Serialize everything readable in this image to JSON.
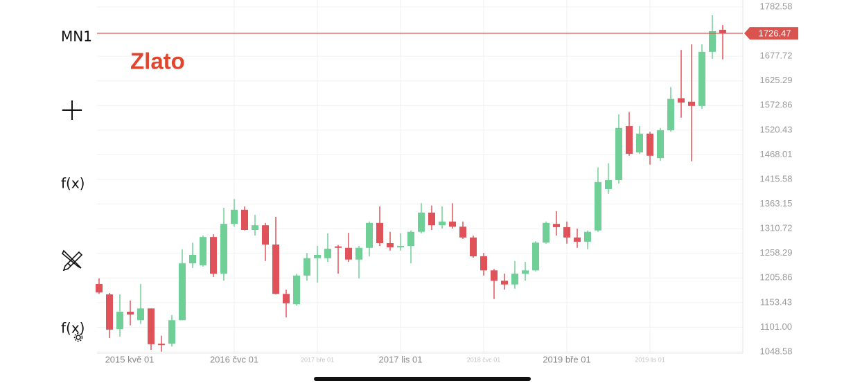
{
  "toolbar": {
    "timeframe": "MN1",
    "indicators": "f(x)",
    "custom": "f(x)"
  },
  "chart_data": {
    "type": "candlestick",
    "title": "Zlato",
    "title_color": "#e0452e",
    "x_start_label": "2015 kvě 01",
    "categories": [
      null,
      null,
      null,
      null,
      null,
      null,
      null,
      null,
      null,
      null,
      null,
      null,
      null,
      "2016 čvc 01",
      null,
      null,
      null,
      null,
      null,
      null,
      null,
      "2017 bře 01",
      null,
      null,
      null,
      null,
      null,
      null,
      null,
      "2017 lis 01",
      null,
      null,
      null,
      null,
      null,
      null,
      null,
      "2018 čvc 01",
      null,
      null,
      null,
      null,
      null,
      null,
      null,
      "2019 bře 01",
      null,
      null,
      null,
      null,
      null,
      null,
      null,
      "2019 lis 01",
      null,
      null,
      null,
      null,
      null,
      null,
      null
    ],
    "open": [
      1193,
      1171,
      1097,
      1134,
      1116,
      1141,
      1066,
      1066,
      1116,
      1237,
      1233,
      1293,
      1215,
      1321,
      1351,
      1308,
      1318,
      1277,
      1172,
      1150,
      1211,
      1248,
      1248,
      1273,
      1270,
      1245,
      1270,
      1323,
      1280,
      1271,
      1274,
      1304,
      1345,
      1318,
      1326,
      1315,
      1292,
      1252,
      1222,
      1200,
      1192,
      1215,
      1222,
      1281,
      1321,
      1314,
      1292,
      1283,
      1307,
      1395,
      1414,
      1529,
      1473,
      1513,
      1461,
      1520,
      1588,
      1581,
      1572,
      1687,
      1734
    ],
    "high": [
      1205,
      1174,
      1171,
      1158,
      1193,
      1141,
      1083,
      1127,
      1267,
      1281,
      1296,
      1299,
      1355,
      1374,
      1358,
      1340,
      1323,
      1336,
      1181,
      1215,
      1259,
      1274,
      1301,
      1276,
      1302,
      1274,
      1326,
      1358,
      1304,
      1301,
      1307,
      1365,
      1360,
      1358,
      1365,
      1326,
      1296,
      1259,
      1225,
      1215,
      1242,
      1240,
      1284,
      1326,
      1348,
      1326,
      1311,
      1307,
      1441,
      1450,
      1554,
      1559,
      1529,
      1517,
      1525,
      1612,
      1691,
      1703,
      1703,
      1765,
      1744
    ],
    "low": [
      1172,
      1078,
      1081,
      1105,
      1108,
      1053,
      1049,
      1060,
      1116,
      1227,
      1230,
      1208,
      1200,
      1315,
      1307,
      1296,
      1242,
      1171,
      1122,
      1147,
      1200,
      1196,
      1240,
      1215,
      1240,
      1205,
      1252,
      1274,
      1264,
      1264,
      1237,
      1301,
      1308,
      1311,
      1311,
      1289,
      1249,
      1211,
      1161,
      1181,
      1183,
      1200,
      1220,
      1279,
      1296,
      1279,
      1270,
      1267,
      1304,
      1385,
      1407,
      1466,
      1470,
      1447,
      1455,
      1517,
      1547,
      1454,
      1566,
      1672,
      1671
    ],
    "close": [
      1175,
      1096,
      1134,
      1128,
      1141,
      1065,
      1063,
      1116,
      1237,
      1255,
      1293,
      1215,
      1321,
      1351,
      1308,
      1318,
      1277,
      1172,
      1152,
      1211,
      1248,
      1255,
      1268,
      1270,
      1245,
      1270,
      1323,
      1280,
      1271,
      1274,
      1304,
      1345,
      1318,
      1326,
      1315,
      1292,
      1252,
      1222,
      1200,
      1192,
      1215,
      1222,
      1281,
      1323,
      1314,
      1292,
      1283,
      1304,
      1410,
      1414,
      1525,
      1470,
      1513,
      1466,
      1520,
      1587,
      1579,
      1572,
      1687,
      1731,
      1726.47
    ],
    "up_color": "#6fcf97",
    "down_color": "#e0525a",
    "price_line_color": "#d9534f",
    "ylim": [
      1048.58,
      1782.58
    ],
    "yticks": [
      1048.58,
      {
        "value": 1101,
        "label": "1101.00"
      },
      1153.43,
      1205.86,
      1258.29,
      1310.72,
      1363.15,
      1415.58,
      1468.01,
      1520.43,
      1572.86,
      1625.29,
      1677.72,
      1782.58
    ],
    "grid": true
  }
}
